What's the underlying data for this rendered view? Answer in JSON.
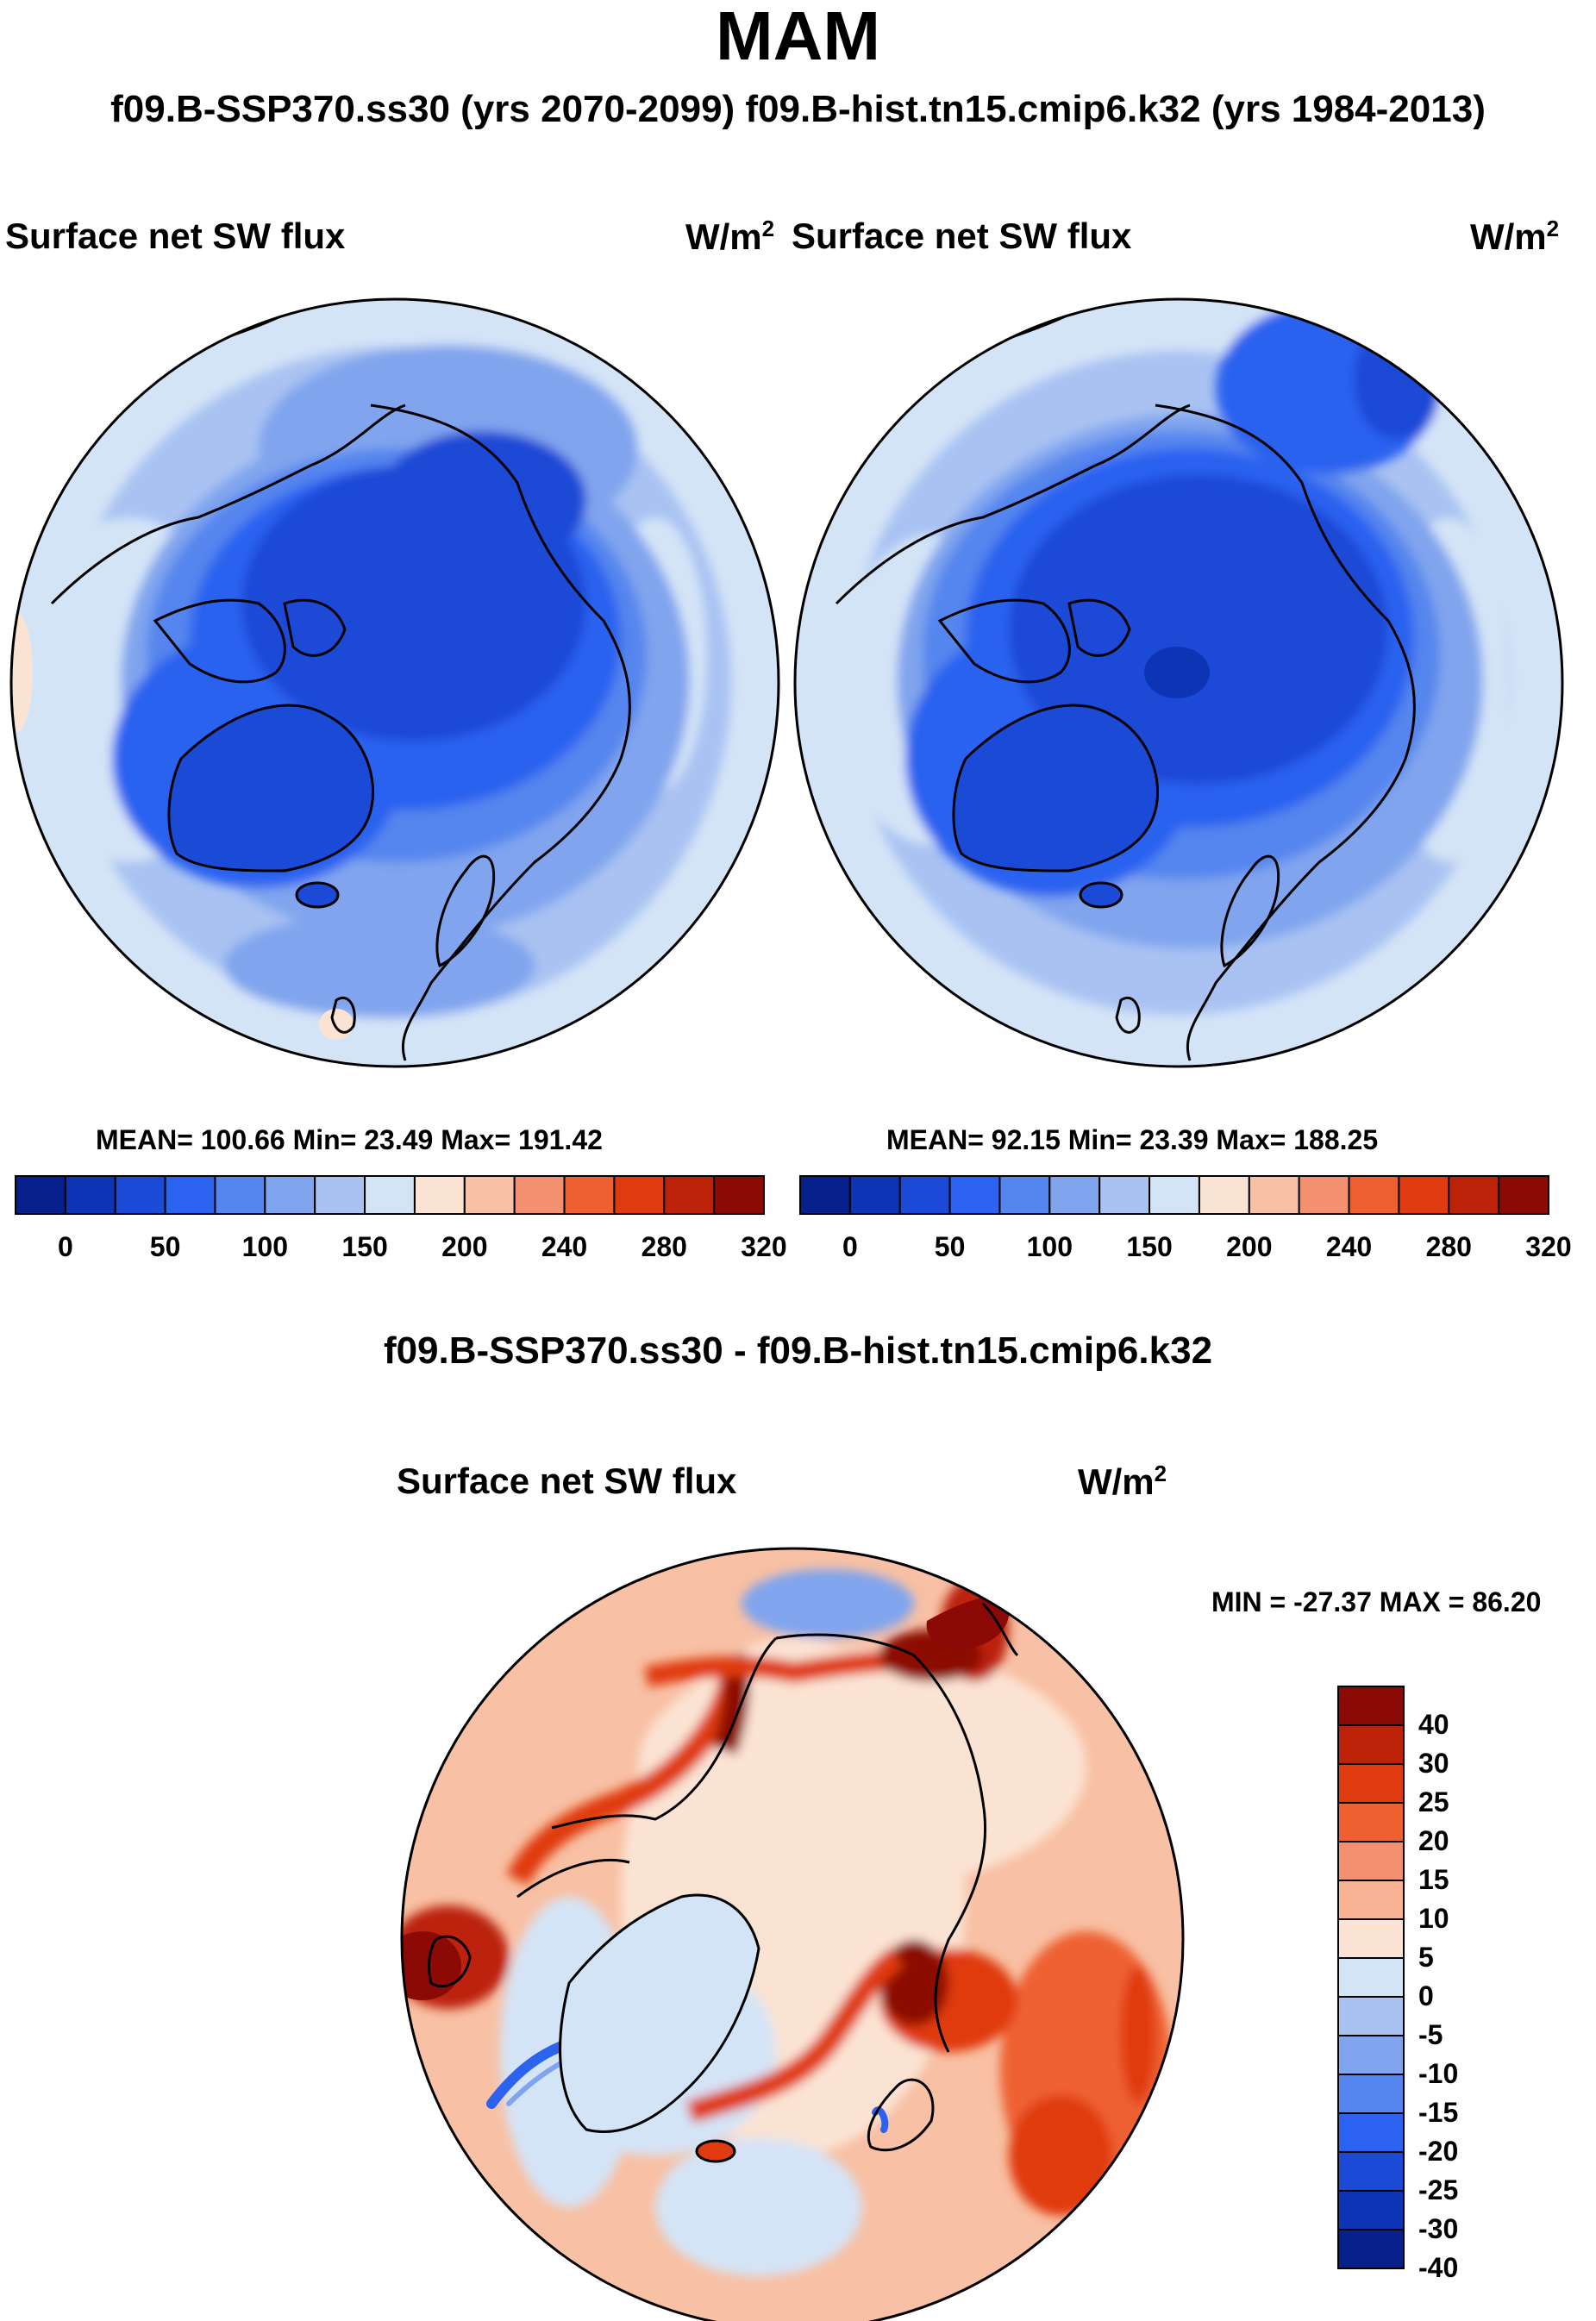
{
  "header": {
    "season": "MAM",
    "runs_line": "f09.B-SSP370.ss30 (yrs 2070-2099)  f09.B-hist.tn15.cmip6.k32 (yrs 1984-2013)",
    "diff_title": "f09.B-SSP370.ss30 - f09.B-hist.tn15.cmip6.k32"
  },
  "chart_data": [
    {
      "type": "polar-map",
      "title": "Surface net SW flux",
      "units": "W/m",
      "units_exp": "2",
      "case": "f09.B-SSP370.ss30 (yrs 2070-2099)",
      "stats": "MEAN= 100.66  Min=  23.49  Max= 191.42",
      "mean": 100.66,
      "min": 23.49,
      "max": 191.42,
      "colorbar_ticks": [
        "0",
        "50",
        "100",
        "150",
        "200",
        "240",
        "280",
        "320"
      ]
    },
    {
      "type": "polar-map",
      "title": "Surface net SW flux",
      "units": "W/m",
      "units_exp": "2",
      "case": "f09.B-hist.tn15.cmip6.k32 (yrs 1984-2013)",
      "stats": "MEAN=  92.15  Min=  23.39  Max= 188.25",
      "mean": 92.15,
      "min": 23.39,
      "max": 188.25,
      "colorbar_ticks": [
        "0",
        "50",
        "100",
        "150",
        "200",
        "240",
        "280",
        "320"
      ]
    },
    {
      "type": "polar-map-difference",
      "title": "Surface net SW flux",
      "units": "W/m",
      "units_exp": "2",
      "stats": "MIN = -27.37 MAX =  86.20",
      "min": -27.37,
      "max": 86.2,
      "colorbar_ticks": [
        "40",
        "30",
        "25",
        "20",
        "15",
        "10",
        "5",
        "0",
        "-5",
        "-10",
        "-15",
        "-20",
        "-25",
        "-30",
        "-40"
      ]
    }
  ],
  "colors": {
    "abs_scale": [
      "#08208c",
      "#0c34b4",
      "#1a4ad6",
      "#2c62f0",
      "#5585ee",
      "#80a4ee",
      "#a9c2f2",
      "#d4e4f7",
      "#fbe3d3",
      "#f8c0a4",
      "#f29070",
      "#ee6030",
      "#e03a10",
      "#bc2208",
      "#8c0a06"
    ],
    "diff_scale": [
      "#8c0a06",
      "#bc2208",
      "#e03a10",
      "#ee6030",
      "#f29070",
      "#f8b294",
      "#fbe3d3",
      "#d4e4f7",
      "#a9c2f2",
      "#80a4ee",
      "#5585ee",
      "#2c62f0",
      "#1a4ad6",
      "#0c34b4",
      "#08208c"
    ]
  }
}
